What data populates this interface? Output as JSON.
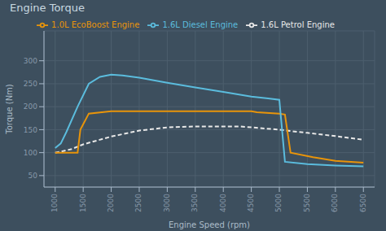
{
  "chart_data": {
    "type": "line",
    "title": "Engine Torque",
    "x_label": "Engine Speed (rpm)",
    "y_label": "Torque (Nm)",
    "xlim": [
      800,
      6700
    ],
    "ylim": [
      25,
      365
    ],
    "xticks": [
      1000,
      1500,
      2000,
      2500,
      3000,
      3500,
      4000,
      4500,
      5000,
      5500,
      6000,
      6500
    ],
    "yticks": [
      50,
      100,
      150,
      200,
      250,
      300
    ],
    "grid": true,
    "legend": "top",
    "series": [
      {
        "name": "1.6L Petrol Engine",
        "color": "#e8e8e8",
        "line_style": "dashed",
        "x": [
          1000,
          1100,
          1300,
          1500,
          2000,
          2500,
          3000,
          3500,
          4000,
          4300,
          4500,
          5000,
          5200,
          5500,
          6000,
          6500
        ],
        "values": [
          100,
          102,
          108,
          118,
          135,
          148,
          155,
          157,
          157,
          157,
          155,
          150,
          147,
          143,
          136,
          128
        ]
      },
      {
        "name": "1.0L EcoBoost Engine",
        "color": "#e8940a",
        "line_style": "solid",
        "x": [
          1000,
          1250,
          1400,
          1450,
          1600,
          2000,
          3000,
          4000,
          4500,
          4600,
          5000,
          5100,
          5200,
          5600,
          6000,
          6500
        ],
        "values": [
          100,
          100,
          100,
          150,
          185,
          190,
          190,
          190,
          190,
          188,
          185,
          183,
          100,
          90,
          82,
          78
        ]
      },
      {
        "name": "1.6L Diesel Engine",
        "color": "#5bbcdd",
        "line_style": "solid",
        "x": [
          1000,
          1100,
          1200,
          1400,
          1600,
          1800,
          2000,
          2200,
          2500,
          3000,
          3500,
          4000,
          4500,
          4800,
          5000,
          5100,
          5500,
          6000,
          6500
        ],
        "values": [
          110,
          120,
          145,
          200,
          250,
          265,
          270,
          268,
          263,
          252,
          242,
          232,
          222,
          218,
          215,
          80,
          75,
          72,
          70
        ]
      }
    ]
  }
}
